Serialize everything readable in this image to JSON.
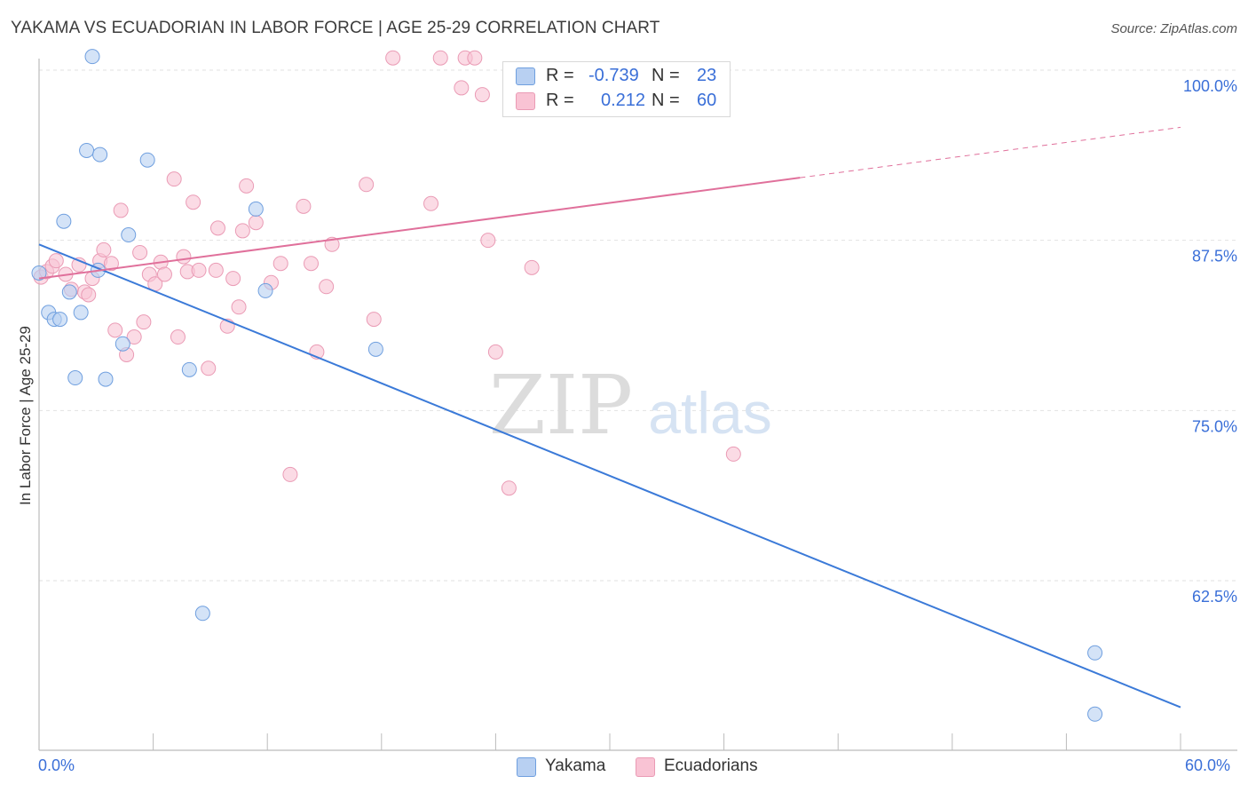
{
  "header": {
    "title": "YAKAMA VS ECUADORIAN IN LABOR FORCE | AGE 25-29 CORRELATION CHART",
    "source": "Source: ZipAtlas.com"
  },
  "watermark": {
    "zip": "ZIP",
    "atlas": "atlas"
  },
  "stats": {
    "yakama": {
      "r_label": "R =",
      "r_value": "-0.739",
      "n_label": "N =",
      "n_value": "23"
    },
    "ecuadorians": {
      "r_label": "R =",
      "r_value": "0.212",
      "n_label": "N =",
      "n_value": "60"
    }
  },
  "legend": {
    "yakama": "Yakama",
    "ecuadorians": "Ecuadorians"
  },
  "chart_data": {
    "type": "scatter",
    "title": "YAKAMA VS ECUADORIAN IN LABOR FORCE | AGE 25-29 CORRELATION CHART",
    "xlabel": "",
    "ylabel": "In Labor Force | Age 25-29",
    "xlim": [
      0,
      60
    ],
    "ylim": [
      50,
      101.5
    ],
    "x_tick_labels": [
      "0.0%",
      "60.0%"
    ],
    "y_ticks": [
      62.5,
      75.0,
      87.5,
      100.0
    ],
    "y_tick_labels": [
      "62.5%",
      "75.0%",
      "87.5%",
      "100.0%"
    ],
    "grid": true,
    "legend_position": "bottom-center",
    "colors": {
      "yakama_fill": "#b8d0f2",
      "yakama_stroke": "#6f9fdf",
      "yakama_line": "#3b7ad8",
      "ecuadorians_fill": "#f9c3d4",
      "ecuadorians_stroke": "#ea9bb5",
      "ecuadorians_line": "#e0709b",
      "tick_text": "#3a6fd8"
    },
    "series": [
      {
        "name": "Yakama",
        "points": [
          [
            0.0,
            85.1
          ],
          [
            0.5,
            82.2
          ],
          [
            0.8,
            81.7
          ],
          [
            1.1,
            81.7
          ],
          [
            1.3,
            88.9
          ],
          [
            1.6,
            83.7
          ],
          [
            1.9,
            77.4
          ],
          [
            2.2,
            82.2
          ],
          [
            2.5,
            94.1
          ],
          [
            2.8,
            101.0
          ],
          [
            3.1,
            85.3
          ],
          [
            3.2,
            93.8
          ],
          [
            3.5,
            77.3
          ],
          [
            4.4,
            79.9
          ],
          [
            4.7,
            87.9
          ],
          [
            5.7,
            93.4
          ],
          [
            7.9,
            78.0
          ],
          [
            8.6,
            60.1
          ],
          [
            11.4,
            89.8
          ],
          [
            11.9,
            83.8
          ],
          [
            17.7,
            79.5
          ],
          [
            55.5,
            57.2
          ],
          [
            55.5,
            52.7
          ]
        ],
        "trend": {
          "x": [
            0.0,
            60.0
          ],
          "y": [
            87.2,
            53.2
          ]
        }
      },
      {
        "name": "Ecuadorians",
        "points": [
          [
            0.1,
            84.8
          ],
          [
            0.4,
            85.2
          ],
          [
            0.7,
            85.6
          ],
          [
            0.9,
            86.0
          ],
          [
            1.4,
            85.0
          ],
          [
            1.7,
            83.9
          ],
          [
            2.1,
            85.7
          ],
          [
            2.4,
            83.7
          ],
          [
            2.6,
            83.5
          ],
          [
            2.8,
            84.7
          ],
          [
            3.2,
            86.0
          ],
          [
            3.4,
            86.8
          ],
          [
            3.8,
            85.8
          ],
          [
            4.0,
            80.9
          ],
          [
            4.3,
            89.7
          ],
          [
            4.6,
            79.1
          ],
          [
            5.0,
            80.4
          ],
          [
            5.3,
            86.6
          ],
          [
            5.5,
            81.5
          ],
          [
            5.8,
            85.0
          ],
          [
            6.1,
            84.3
          ],
          [
            6.4,
            85.9
          ],
          [
            6.6,
            85.0
          ],
          [
            7.1,
            92.0
          ],
          [
            7.3,
            80.4
          ],
          [
            7.6,
            86.3
          ],
          [
            7.8,
            85.2
          ],
          [
            8.1,
            90.3
          ],
          [
            8.4,
            85.3
          ],
          [
            8.9,
            78.1
          ],
          [
            9.3,
            85.3
          ],
          [
            9.4,
            88.4
          ],
          [
            9.9,
            81.2
          ],
          [
            10.2,
            84.7
          ],
          [
            10.5,
            82.6
          ],
          [
            10.7,
            88.2
          ],
          [
            10.9,
            91.5
          ],
          [
            11.4,
            88.8
          ],
          [
            12.2,
            84.4
          ],
          [
            12.7,
            85.8
          ],
          [
            13.2,
            70.3
          ],
          [
            13.9,
            90.0
          ],
          [
            14.3,
            85.8
          ],
          [
            14.6,
            79.3
          ],
          [
            15.1,
            84.1
          ],
          [
            15.4,
            87.2
          ],
          [
            17.2,
            91.6
          ],
          [
            17.6,
            81.7
          ],
          [
            18.6,
            100.9
          ],
          [
            20.6,
            90.2
          ],
          [
            21.1,
            100.9
          ],
          [
            22.2,
            98.7
          ],
          [
            22.4,
            100.9
          ],
          [
            22.9,
            100.9
          ],
          [
            23.3,
            98.2
          ],
          [
            23.6,
            87.5
          ],
          [
            24.0,
            79.3
          ],
          [
            24.7,
            69.3
          ],
          [
            36.5,
            71.8
          ],
          [
            25.9,
            85.5
          ]
        ],
        "trend": {
          "x": [
            0.0,
            40.0
          ],
          "y": [
            84.7,
            92.1
          ]
        },
        "trend_extension": {
          "x": [
            40.0,
            60.0
          ],
          "y": [
            92.1,
            95.8
          ]
        }
      }
    ]
  }
}
